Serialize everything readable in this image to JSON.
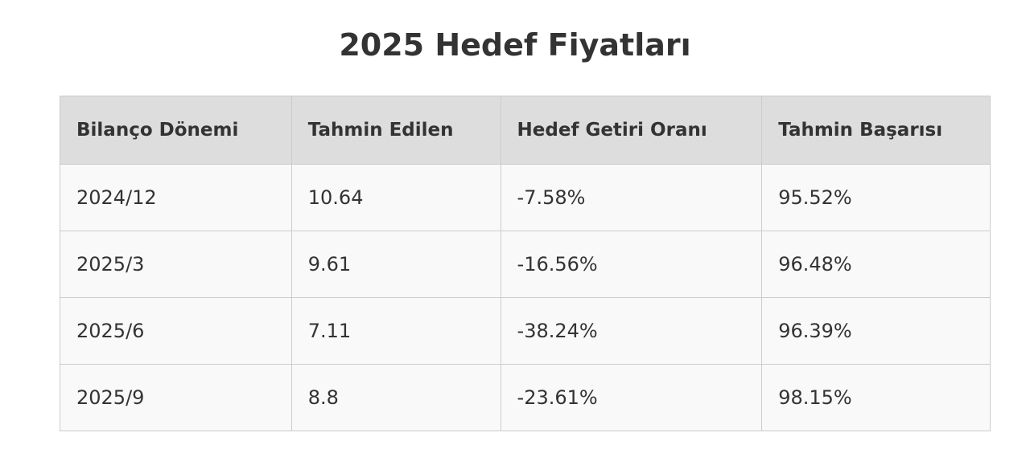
{
  "title": "2025 Hedef Fiyatları",
  "table": {
    "header": [
      "Bilanço Dönemi",
      "Tahmin Edilen",
      "Hedef Getiri Oranı",
      "Tahmin Başarısı"
    ],
    "rows": [
      [
        "2024/12",
        "10.64",
        "-7.58%",
        "95.52%"
      ],
      [
        "2025/3",
        "9.61",
        "-16.56%",
        "96.48%"
      ],
      [
        "2025/6",
        "7.11",
        "-38.24%",
        "96.39%"
      ],
      [
        "2025/9",
        "8.8",
        "-23.61%",
        "98.15%"
      ]
    ]
  }
}
